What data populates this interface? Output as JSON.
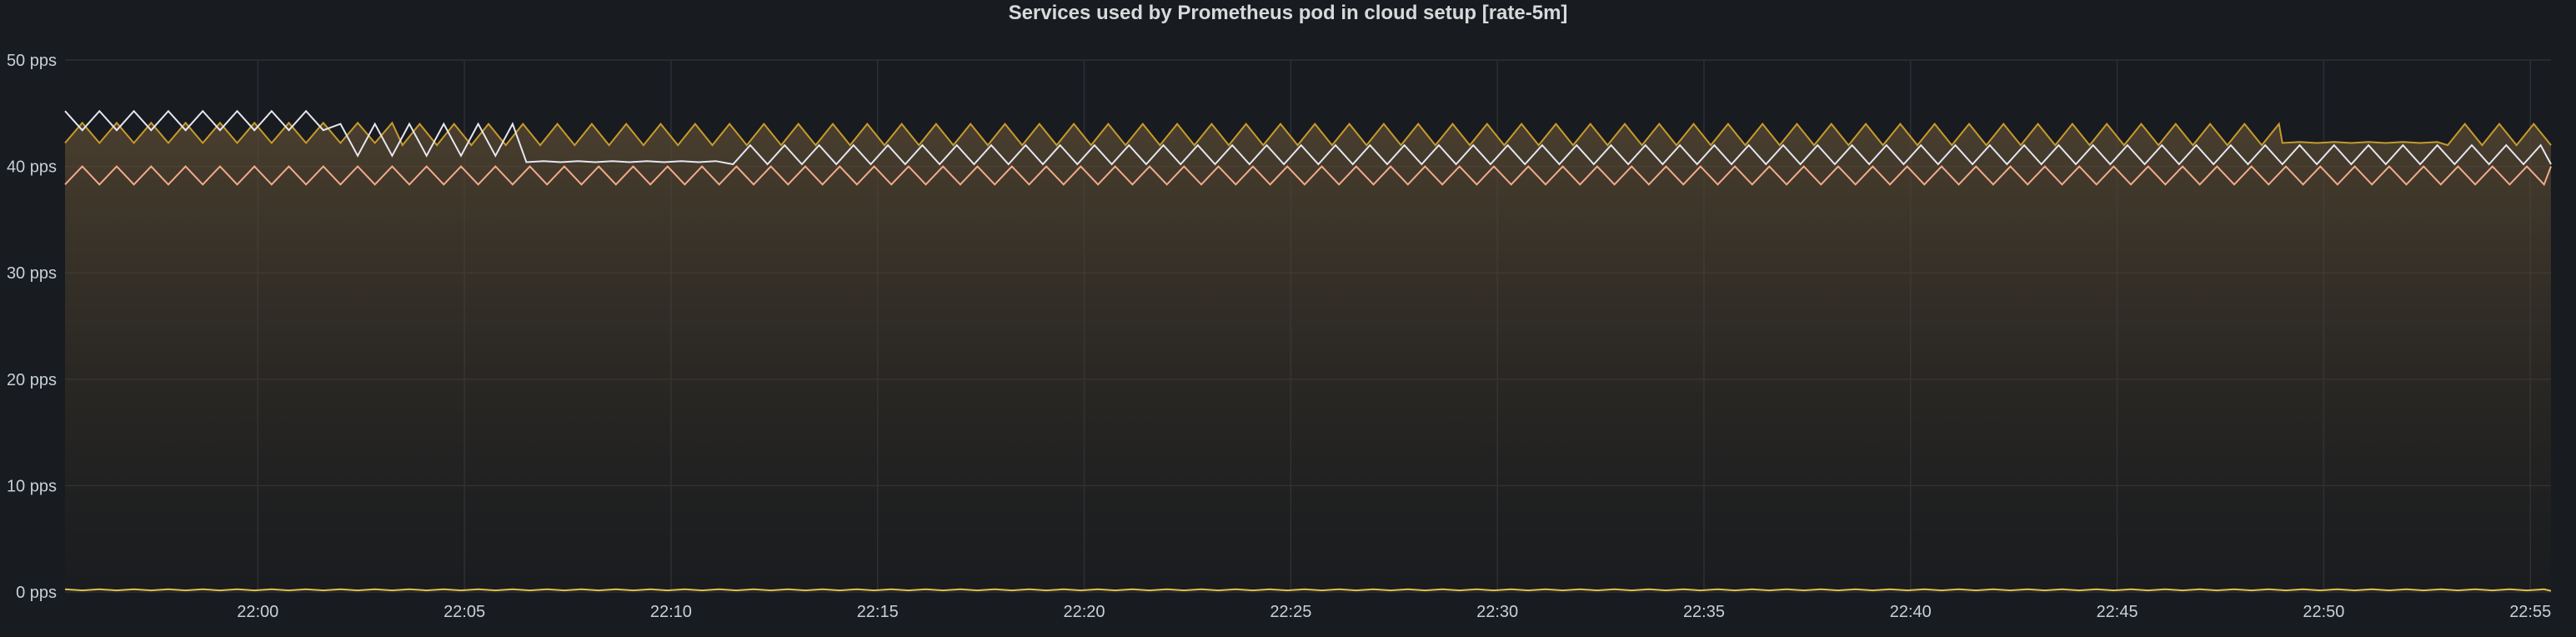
{
  "panel": {
    "title": "Services used by Prometheus pod in cloud setup [rate-5m]"
  },
  "chart_data": {
    "type": "area",
    "title": "Services used by Prometheus pod in cloud setup [rate-5m]",
    "xlabel": "",
    "ylabel": "",
    "y_unit": "pps",
    "ylim": [
      0,
      50
    ],
    "y_ticks": [
      {
        "value": 0,
        "label": "0 pps"
      },
      {
        "value": 10,
        "label": "10 pps"
      },
      {
        "value": 20,
        "label": "20 pps"
      },
      {
        "value": 30,
        "label": "30 pps"
      },
      {
        "value": 40,
        "label": "40 pps"
      },
      {
        "value": 50,
        "label": "50 pps"
      }
    ],
    "x_range": [
      "21:55:20",
      "22:55:30"
    ],
    "x_ticks": [
      "22:00",
      "22:05",
      "22:10",
      "22:15",
      "22:20",
      "22:25",
      "22:30",
      "22:35",
      "22:40",
      "22:45",
      "22:50",
      "22:55"
    ],
    "grid": true,
    "legend": "none",
    "series": [
      {
        "color": "#c79a2b",
        "fill": true,
        "approx_segments": [
          {
            "from": "21:55:20",
            "to": "22:03:30",
            "low": 42.2,
            "high": 44.1
          },
          {
            "from": "22:03:30",
            "to": "22:49:00",
            "low": 42.0,
            "high": 44.0
          },
          {
            "from": "22:49:00",
            "to": "22:53:00",
            "low": 42.1,
            "high": 42.4
          },
          {
            "from": "22:53:00",
            "to": "22:55:30",
            "low": 42.0,
            "high": 44.0
          }
        ]
      },
      {
        "color": "#e6e6f0",
        "fill": false,
        "approx_segments": [
          {
            "from": "21:55:20",
            "to": "22:02:00",
            "low": 43.4,
            "high": 45.2
          },
          {
            "from": "22:02:00",
            "to": "22:06:30",
            "low": 41.0,
            "high": 44.0
          },
          {
            "from": "22:06:30",
            "to": "22:11:30",
            "low": 40.3,
            "high": 40.6
          },
          {
            "from": "22:11:30",
            "to": "22:55:30",
            "low": 40.2,
            "high": 42.0
          }
        ]
      },
      {
        "color": "#f2ab88",
        "fill": false,
        "approx_segments": [
          {
            "from": "21:55:20",
            "to": "22:55:30",
            "low": 38.3,
            "high": 40.0
          }
        ]
      },
      {
        "color": "#e0c24a",
        "fill": false,
        "approx_segments": [
          {
            "from": "21:55:20",
            "to": "22:55:30",
            "low": 0.1,
            "high": 0.3
          }
        ]
      }
    ]
  }
}
